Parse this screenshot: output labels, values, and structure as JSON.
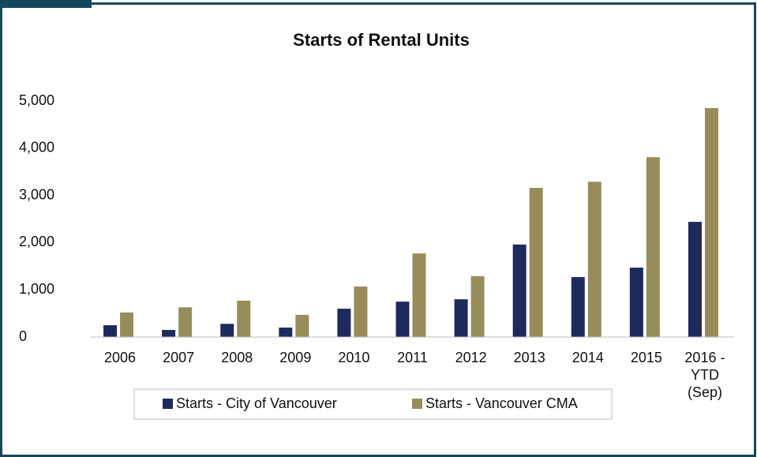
{
  "chart_data": {
    "type": "bar",
    "title": "Starts of Rental Units",
    "categories": [
      "2006",
      "2007",
      "2008",
      "2009",
      "2010",
      "2011",
      "2012",
      "2013",
      "2014",
      "2015",
      "2016 -\nYTD\n(Sep)"
    ],
    "series": [
      {
        "name": "Starts - City of Vancouver",
        "color": "#1f2a5c",
        "values": [
          250,
          150,
          280,
          200,
          600,
          750,
          800,
          1960,
          1270,
          1470,
          2440
        ]
      },
      {
        "name": "Starts - Vancouver CMA",
        "color": "#968d5b",
        "values": [
          520,
          630,
          770,
          470,
          1070,
          1770,
          1290,
          3160,
          3290,
          3810,
          4850
        ]
      }
    ],
    "ylim": [
      0,
      5000
    ],
    "yticks": [
      0,
      {
        "value": 1000,
        "label": "1,000"
      },
      {
        "value": 2000,
        "label": "2,000"
      },
      {
        "value": 3000,
        "label": "3,000"
      },
      {
        "value": 4000,
        "label": "4,000"
      },
      {
        "value": 5000,
        "label": "5,000"
      }
    ],
    "grid": false,
    "legend": "bottom"
  }
}
